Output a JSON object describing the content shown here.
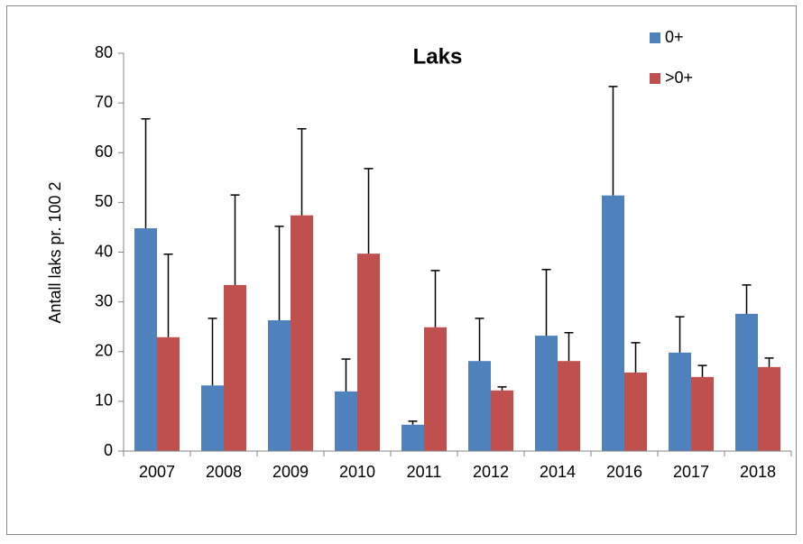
{
  "chart_data": {
    "type": "bar",
    "title": "Laks",
    "y_label": "Antall laks pr. 100  2",
    "categories": [
      "2007",
      "2008",
      "2009",
      "2010",
      "2011",
      "2012",
      "2014",
      "2016",
      "2017",
      "2018"
    ],
    "series": [
      {
        "name": "0+",
        "color": "#4f81bd",
        "values": [
          44.8,
          13.2,
          26.3,
          12.0,
          5.3,
          18.1,
          23.2,
          51.4,
          19.8,
          27.6
        ],
        "errors": [
          22.0,
          13.5,
          18.9,
          6.5,
          0.7,
          8.6,
          13.3,
          21.9,
          7.2,
          5.8
        ]
      },
      {
        "name": ">0+",
        "color": "#c0504d",
        "values": [
          22.9,
          33.4,
          47.4,
          39.7,
          24.9,
          12.2,
          18.1,
          15.8,
          14.9,
          16.9
        ],
        "errors": [
          16.7,
          18.1,
          17.4,
          17.1,
          11.4,
          0.7,
          5.7,
          6.0,
          2.3,
          1.8
        ]
      }
    ],
    "ylim": [
      0,
      80
    ],
    "yticks": [
      0,
      10,
      20,
      30,
      40,
      50,
      60,
      70,
      80
    ],
    "legend": "top-right"
  }
}
